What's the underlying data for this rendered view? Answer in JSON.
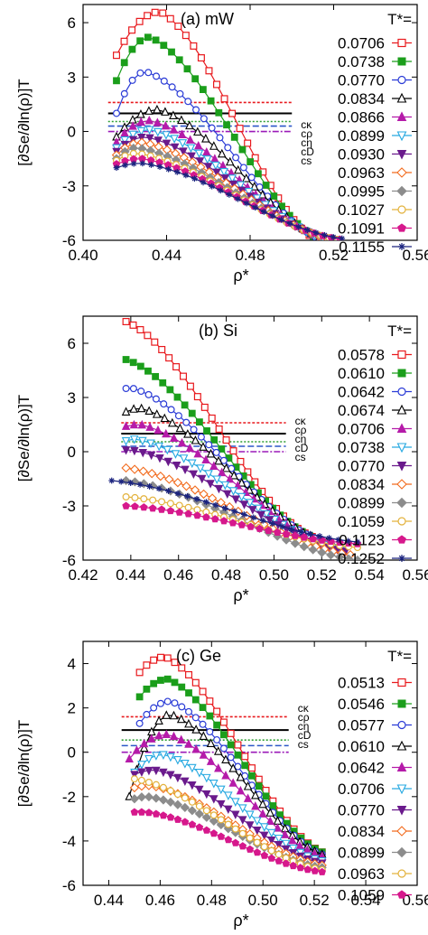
{
  "chart_data": [
    {
      "type": "line",
      "panel_label": "(a) mW",
      "xlabel": "ρ*",
      "ylabel": "[∂Se/∂ln(ρ)]T",
      "xlim": [
        0.4,
        0.56
      ],
      "ylim": [
        -6,
        7
      ],
      "xticks": [
        "0.40",
        "0.44",
        "0.48",
        "0.52",
        "0.56"
      ],
      "yticks": [
        "6",
        "3",
        "0",
        "-3",
        "-6"
      ],
      "legend_title": "T*=",
      "legend_position": "right",
      "ref_lines": [
        {
          "label": "cκ",
          "y": 1.6,
          "color": "#e8191d",
          "dash": "3,2"
        },
        {
          "label": "cρ",
          "y": 1.0,
          "color": "#000000",
          "dash": ""
        },
        {
          "label": "cη",
          "y": 0.55,
          "color": "#2e9e33",
          "dash": "2,2"
        },
        {
          "label": "cD",
          "y": 0.3,
          "color": "#2c57c8",
          "dash": "7,3"
        },
        {
          "label": "cs",
          "y": 0.0,
          "color": "#9b1ab8",
          "dash": "7,2,2,2"
        }
      ],
      "series": [
        {
          "name": "0.0706",
          "color": "#e8191d",
          "marker": "square-open",
          "x0": 0.416,
          "x1": 0.512,
          "ypeak": 6.6,
          "xpeak": 0.437,
          "yend": -6.0,
          "ystart": 4.2
        },
        {
          "name": "0.0738",
          "color": "#1b9e1b",
          "marker": "square-filled",
          "x0": 0.416,
          "x1": 0.514,
          "ypeak": 5.2,
          "xpeak": 0.432,
          "yend": -6.0,
          "ystart": 2.8
        },
        {
          "name": "0.0770",
          "color": "#2a3bd6",
          "marker": "circle-open",
          "x0": 0.416,
          "x1": 0.515,
          "ypeak": 3.3,
          "xpeak": 0.43,
          "yend": -6.0,
          "ystart": 1.0
        },
        {
          "name": "0.0834",
          "color": "#000000",
          "marker": "triangle-open",
          "x0": 0.416,
          "x1": 0.517,
          "ypeak": 1.2,
          "xpeak": 0.436,
          "yend": -6.0,
          "ystart": -0.3
        },
        {
          "name": "0.0866",
          "color": "#b51ba9",
          "marker": "triangle-filled",
          "x0": 0.416,
          "x1": 0.518,
          "ypeak": 0.6,
          "xpeak": 0.432,
          "yend": -6.0,
          "ystart": -0.6
        },
        {
          "name": "0.0899",
          "color": "#27a9e1",
          "marker": "triangle-down-open",
          "x0": 0.416,
          "x1": 0.519,
          "ypeak": 0.1,
          "xpeak": 0.432,
          "yend": -6.0,
          "ystart": -0.9
        },
        {
          "name": "0.0930",
          "color": "#6a1a8c",
          "marker": "triangle-down-filled",
          "x0": 0.416,
          "x1": 0.52,
          "ypeak": -0.3,
          "xpeak": 0.43,
          "yend": -6.0,
          "ystart": -1.1
        },
        {
          "name": "0.0963",
          "color": "#f26b1d",
          "marker": "diamond-open",
          "x0": 0.416,
          "x1": 0.521,
          "ypeak": -0.6,
          "xpeak": 0.428,
          "yend": -6.0,
          "ystart": -1.3
        },
        {
          "name": "0.0995",
          "color": "#8c8c8c",
          "marker": "diamond-filled",
          "x0": 0.416,
          "x1": 0.522,
          "ypeak": -0.9,
          "xpeak": 0.426,
          "yend": -6.0,
          "ystart": -1.5
        },
        {
          "name": "0.1027",
          "color": "#e3b23c",
          "marker": "circle-open",
          "x0": 0.416,
          "x1": 0.522,
          "ypeak": -1.2,
          "xpeak": 0.426,
          "yend": -5.95,
          "ystart": -1.6
        },
        {
          "name": "0.1091",
          "color": "#d6188c",
          "marker": "pentagon-filled",
          "x0": 0.416,
          "x1": 0.523,
          "ypeak": -1.5,
          "xpeak": 0.428,
          "yend": -5.95,
          "ystart": -1.8
        },
        {
          "name": "0.1155",
          "color": "#1a237e",
          "marker": "asterisk",
          "x0": 0.416,
          "x1": 0.524,
          "ypeak": -1.75,
          "xpeak": 0.428,
          "yend": -5.9,
          "ystart": -2.0
        }
      ]
    },
    {
      "type": "line",
      "panel_label": "(b) Si",
      "xlabel": "ρ*",
      "ylabel": "[∂Se/∂ln(ρ)]T",
      "xlim": [
        0.42,
        0.56
      ],
      "ylim": [
        -6,
        7.5
      ],
      "xticks": [
        "0.42",
        "0.44",
        "0.46",
        "0.48",
        "0.50",
        "0.52",
        "0.54",
        "0.56"
      ],
      "yticks": [
        "6",
        "3",
        "0",
        "-3",
        "-6"
      ],
      "legend_title": "T*=",
      "legend_position": "right",
      "ref_lines": [
        {
          "label": "cκ",
          "y": 1.6,
          "color": "#e8191d",
          "dash": "3,2"
        },
        {
          "label": "cρ",
          "y": 1.0,
          "color": "#000000",
          "dash": ""
        },
        {
          "label": "cη",
          "y": 0.55,
          "color": "#2e9e33",
          "dash": "2,2"
        },
        {
          "label": "cD",
          "y": 0.3,
          "color": "#2c57c8",
          "dash": "7,3"
        },
        {
          "label": "cs",
          "y": 0.0,
          "color": "#9b1ab8",
          "dash": "7,2,2,2"
        }
      ],
      "series": [
        {
          "name": "0.0578",
          "color": "#e8191d",
          "marker": "square-open",
          "x0": 0.438,
          "x1": 0.516,
          "ypeak": 7.2,
          "xpeak": 0.438,
          "yend": -4.7,
          "ystart": 7.2
        },
        {
          "name": "0.0610",
          "color": "#1b9e1b",
          "marker": "square-filled",
          "x0": 0.438,
          "x1": 0.518,
          "ypeak": 5.1,
          "xpeak": 0.438,
          "yend": -4.8,
          "ystart": 5.1
        },
        {
          "name": "0.0642",
          "color": "#2a3bd6",
          "marker": "circle-open",
          "x0": 0.438,
          "x1": 0.52,
          "ypeak": 3.5,
          "xpeak": 0.441,
          "yend": -4.9,
          "ystart": 3.5
        },
        {
          "name": "0.0674",
          "color": "#000000",
          "marker": "triangle-open",
          "x0": 0.438,
          "x1": 0.522,
          "ypeak": 2.4,
          "xpeak": 0.444,
          "yend": -5.0,
          "ystart": 2.2
        },
        {
          "name": "0.0706",
          "color": "#b51ba9",
          "marker": "triangle-filled",
          "x0": 0.438,
          "x1": 0.525,
          "ypeak": 1.5,
          "xpeak": 0.444,
          "yend": -5.2,
          "ystart": 1.4
        },
        {
          "name": "0.0738",
          "color": "#27a9e1",
          "marker": "triangle-down-open",
          "x0": 0.438,
          "x1": 0.528,
          "ypeak": 0.7,
          "xpeak": 0.442,
          "yend": -5.4,
          "ystart": 0.6
        },
        {
          "name": "0.0770",
          "color": "#6a1a8c",
          "marker": "triangle-down-filled",
          "x0": 0.438,
          "x1": 0.53,
          "ypeak": 0.1,
          "xpeak": 0.44,
          "yend": -5.5,
          "ystart": 0.1
        },
        {
          "name": "0.0834",
          "color": "#f26b1d",
          "marker": "diamond-open",
          "x0": 0.438,
          "x1": 0.532,
          "ypeak": -0.9,
          "xpeak": 0.438,
          "yend": -5.7,
          "ystart": -0.9
        },
        {
          "name": "0.0899",
          "color": "#8c8c8c",
          "marker": "diamond-filled",
          "x0": 0.438,
          "x1": 0.535,
          "ypeak": -1.6,
          "xpeak": 0.438,
          "yend": -6.0,
          "ystart": -1.6
        },
        {
          "name": "0.1059",
          "color": "#e3b23c",
          "marker": "circle-open",
          "x0": 0.438,
          "x1": 0.535,
          "ypeak": -2.5,
          "xpeak": 0.438,
          "yend": -5.3,
          "ystart": -2.5
        },
        {
          "name": "0.1123",
          "color": "#d6188c",
          "marker": "pentagon-filled",
          "x0": 0.438,
          "x1": 0.535,
          "ypeak": -3.0,
          "xpeak": 0.438,
          "yend": -5.1,
          "ystart": -3.0
        },
        {
          "name": "0.1252",
          "color": "#1a237e",
          "marker": "asterisk",
          "x0": 0.432,
          "x1": 0.535,
          "ypeak": -1.6,
          "xpeak": 0.432,
          "yend": -5.0,
          "ystart": -1.6
        }
      ]
    },
    {
      "type": "line",
      "panel_label": "(c) Ge",
      "xlabel": "ρ*",
      "ylabel": "[∂Se/∂ln(ρ)]T",
      "xlim": [
        0.43,
        0.56
      ],
      "ylim": [
        -6,
        5
      ],
      "xticks": [
        "0.44",
        "0.46",
        "0.48",
        "0.50",
        "0.52",
        "0.54",
        "0.56"
      ],
      "yticks": [
        "4",
        "2",
        "0",
        "-2",
        "-4",
        "-6"
      ],
      "legend_title": "T*=",
      "legend_position": "right",
      "ref_lines": [
        {
          "label": "cκ",
          "y": 1.6,
          "color": "#e8191d",
          "dash": "3,2"
        },
        {
          "label": "cρ",
          "y": 1.0,
          "color": "#000000",
          "dash": ""
        },
        {
          "label": "cη",
          "y": 0.55,
          "color": "#2e9e33",
          "dash": "2,2"
        },
        {
          "label": "cD",
          "y": 0.3,
          "color": "#2c57c8",
          "dash": "7,3"
        },
        {
          "label": "cs",
          "y": 0.0,
          "color": "#9b1ab8",
          "dash": "7,2,2,2"
        }
      ],
      "series": [
        {
          "name": "0.0513",
          "color": "#e8191d",
          "marker": "square-open",
          "x0": 0.452,
          "x1": 0.523,
          "ypeak": 4.3,
          "xpeak": 0.462,
          "yend": -4.5,
          "ystart": 3.6
        },
        {
          "name": "0.0546",
          "color": "#1b9e1b",
          "marker": "square-filled",
          "x0": 0.452,
          "x1": 0.523,
          "ypeak": 3.3,
          "xpeak": 0.463,
          "yend": -4.5,
          "ystart": 2.5
        },
        {
          "name": "0.0577",
          "color": "#2a3bd6",
          "marker": "circle-open",
          "x0": 0.452,
          "x1": 0.523,
          "ypeak": 2.3,
          "xpeak": 0.464,
          "yend": -4.6,
          "ystart": 1.3
        },
        {
          "name": "0.0610",
          "color": "#000000",
          "marker": "triangle-open",
          "x0": 0.448,
          "x1": 0.523,
          "ypeak": 1.7,
          "xpeak": 0.464,
          "yend": -4.6,
          "ystart": -2.0
        },
        {
          "name": "0.0642",
          "color": "#b51ba9",
          "marker": "triangle-filled",
          "x0": 0.448,
          "x1": 0.523,
          "ypeak": 0.8,
          "xpeak": 0.463,
          "yend": -4.7,
          "ystart": -0.3
        },
        {
          "name": "0.0706",
          "color": "#27a9e1",
          "marker": "triangle-down-open",
          "x0": 0.45,
          "x1": 0.523,
          "ypeak": -0.1,
          "xpeak": 0.461,
          "yend": -4.9,
          "ystart": -0.9
        },
        {
          "name": "0.0770",
          "color": "#6a1a8c",
          "marker": "triangle-down-filled",
          "x0": 0.45,
          "x1": 0.523,
          "ypeak": -0.8,
          "xpeak": 0.458,
          "yend": -5.0,
          "ystart": -1.0
        },
        {
          "name": "0.0834",
          "color": "#f26b1d",
          "marker": "diamond-open",
          "x0": 0.45,
          "x1": 0.523,
          "ypeak": -1.5,
          "xpeak": 0.456,
          "yend": -5.1,
          "ystart": -1.6
        },
        {
          "name": "0.0899",
          "color": "#8c8c8c",
          "marker": "diamond-filled",
          "x0": 0.45,
          "x1": 0.523,
          "ypeak": -2.0,
          "xpeak": 0.455,
          "yend": -5.2,
          "ystart": -2.1
        },
        {
          "name": "0.0963",
          "color": "#e3b23c",
          "marker": "circle-open",
          "x0": 0.45,
          "x1": 0.523,
          "ypeak": -1.2,
          "xpeak": 0.45,
          "yend": -5.3,
          "ystart": -1.2
        },
        {
          "name": "0.1059",
          "color": "#d6188c",
          "marker": "pentagon-filled",
          "x0": 0.45,
          "x1": 0.523,
          "ypeak": -2.7,
          "xpeak": 0.454,
          "yend": -5.4,
          "ystart": -2.7
        }
      ]
    }
  ]
}
